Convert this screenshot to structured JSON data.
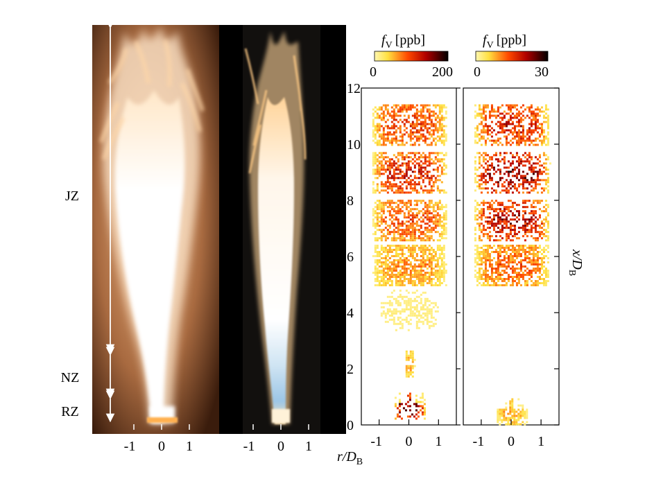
{
  "chart_data": {
    "type": "heatmap",
    "zone_labels": [
      "JZ",
      "NZ",
      "RZ"
    ],
    "photo_panels": [
      {
        "name": "flame-photo-long-exposure",
        "xticks": [
          "-1",
          "0",
          "1"
        ]
      },
      {
        "name": "flame-photo-short-exposure",
        "xticks": [
          "-1",
          "0",
          "1"
        ]
      }
    ],
    "xlabel_main": "r/D",
    "xlabel_sub": "B",
    "ylabel_main": "x/D",
    "ylabel_sub": "B",
    "yticks": [
      "0",
      "2",
      "4",
      "6",
      "8",
      "10",
      "12"
    ],
    "ylim": [
      0,
      12
    ],
    "xlim": [
      -1.6,
      1.6
    ],
    "heatmaps": [
      {
        "colorbar_label_main": "f",
        "colorbar_label_sub": "V",
        "colorbar_unit": "[ppb]",
        "colorbar_min": "0",
        "colorbar_max": "200",
        "xticks": [
          "-1",
          "0",
          "1"
        ],
        "bands": [
          {
            "x_center": 10.7,
            "intensity": 0.55
          },
          {
            "x_center": 9.0,
            "intensity": 0.62
          },
          {
            "x_center": 7.3,
            "intensity": 0.5
          },
          {
            "x_center": 5.7,
            "intensity": 0.35
          },
          {
            "x_center": 4.1,
            "intensity": 0.08
          },
          {
            "x_center": 2.2,
            "intensity": 0.3
          },
          {
            "x_center": 0.7,
            "intensity": 0.85
          }
        ]
      },
      {
        "colorbar_label_main": "f",
        "colorbar_label_sub": "V",
        "colorbar_unit": "[ppb]",
        "colorbar_min": "0",
        "colorbar_max": "30",
        "xticks": [
          "-1",
          "0",
          "1"
        ],
        "bands": [
          {
            "x_center": 10.7,
            "intensity": 0.62
          },
          {
            "x_center": 9.0,
            "intensity": 0.8
          },
          {
            "x_center": 7.3,
            "intensity": 0.72
          },
          {
            "x_center": 5.7,
            "intensity": 0.45
          },
          {
            "x_center": 4.1,
            "intensity": 0.05
          },
          {
            "x_center": 0.5,
            "intensity": 0.3
          }
        ]
      }
    ]
  }
}
